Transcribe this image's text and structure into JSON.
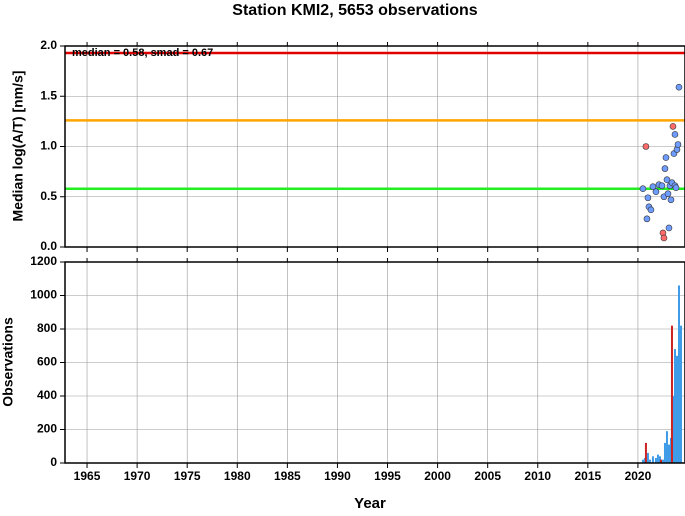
{
  "chart_data": [
    {
      "type": "scatter",
      "title": "Station KMI2, 5653 observations",
      "ylabel": "Median log(A/T) [nm/s]",
      "annotation": "median = 0.58, smad = 0.67",
      "xlim": [
        1962.8,
        2024.7
      ],
      "ylim": [
        0,
        2
      ],
      "grid": true,
      "yticks": [
        {
          "value": 0,
          "label": "0.0"
        },
        0.5,
        {
          "value": 1,
          "label": "1.0"
        },
        1.5,
        {
          "value": 2,
          "label": "2.0"
        }
      ],
      "hlines": [
        {
          "value": 1.93,
          "color": "#e00000"
        },
        {
          "value": 1.26,
          "color": "#ffa500"
        },
        {
          "value": 0.58,
          "color": "#22ee22"
        }
      ],
      "series": [
        {
          "color": "#6f9cff",
          "x": [
            2020.5,
            2020.9,
            2021.1,
            2021.3,
            2021.0,
            2021.5,
            2021.8,
            2022.1,
            2022.4,
            2022.6,
            2022.7,
            2022.8,
            2022.9,
            2023.0,
            2023.1,
            2023.2,
            2023.3,
            2023.4,
            2023.6,
            2023.7,
            2023.7,
            2023.8,
            2023.9,
            2024.0,
            2024.1
          ],
          "values": [
            0.58,
            0.28,
            0.4,
            0.37,
            0.49,
            0.6,
            0.55,
            0.62,
            0.61,
            0.5,
            0.78,
            0.89,
            0.67,
            0.53,
            0.19,
            0.61,
            0.47,
            0.64,
            0.93,
            0.61,
            1.12,
            0.59,
            0.97,
            1.02,
            1.59
          ]
        },
        {
          "color": "#ff6a6a",
          "x": [
            2020.8,
            2022.5,
            2022.6,
            2023.5
          ],
          "values": [
            1.0,
            0.14,
            0.09,
            1.2
          ]
        }
      ]
    },
    {
      "type": "bar",
      "ylabel": "Observations",
      "xlabel": "Year",
      "xlim": [
        1962.8,
        2024.7
      ],
      "ylim": [
        0,
        1200
      ],
      "grid": true,
      "xticks": [
        1965,
        1970,
        1975,
        1980,
        1985,
        1990,
        1995,
        2000,
        2005,
        2010,
        2015,
        2020
      ],
      "yticks": [
        0,
        200,
        400,
        600,
        800,
        1000,
        1200
      ],
      "series": [
        {
          "color": "#3d9be8",
          "x": [
            2020.5,
            2020.7,
            2021.0,
            2021.2,
            2021.5,
            2021.8,
            2022.0,
            2022.2,
            2022.5,
            2022.7,
            2022.9,
            2023.1,
            2023.3,
            2023.5,
            2023.7,
            2023.9,
            2024.1,
            2024.3
          ],
          "values": [
            20,
            30,
            60,
            20,
            40,
            30,
            50,
            40,
            20,
            120,
            190,
            110,
            150,
            400,
            680,
            640,
            1060,
            820
          ]
        },
        {
          "color": "#cc2222",
          "x": [
            2020.8,
            2022.3,
            2023.4
          ],
          "values": [
            120,
            20,
            820
          ]
        }
      ]
    }
  ]
}
